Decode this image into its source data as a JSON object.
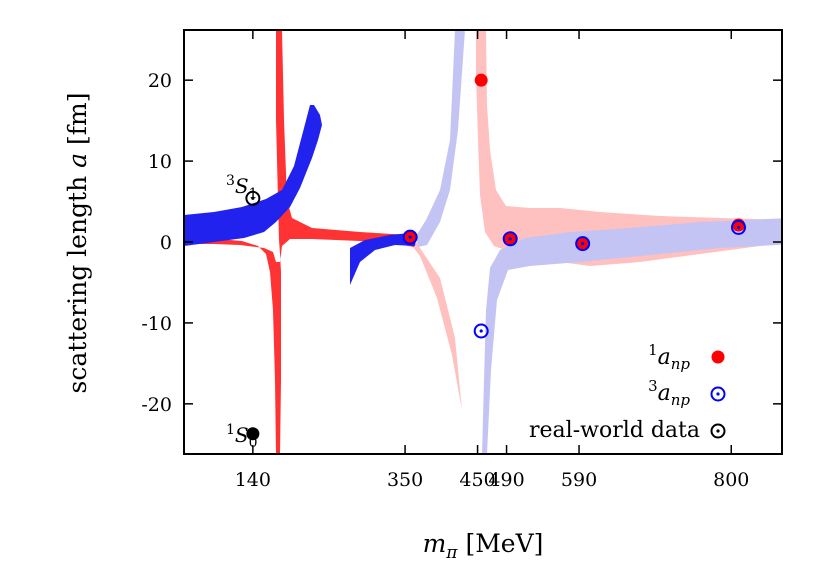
{
  "chart_data": {
    "type": "scatter",
    "xlabel": {
      "symbol": "m",
      "sub": "π",
      "unit": "[MeV]"
    },
    "ylabel": {
      "text": "scattering length ",
      "symbol": "a",
      "unit": " [fm]"
    },
    "xlim": [
      45,
      870
    ],
    "ylim": [
      -26.2,
      26.2
    ],
    "x_ticks": [
      140,
      350,
      450,
      490,
      590,
      800
    ],
    "y_ticks": [
      -20,
      -10,
      0,
      10,
      20
    ],
    "grid": false,
    "legend_position": "bottom-right",
    "colors": {
      "red": "#ff0000",
      "blue": "#0000ff",
      "black": "#000000",
      "red_band_dark": "#ff3333",
      "blue_band_dark": "#2222ee",
      "red_band_light": "#ffc0c0",
      "blue_band_light": "#c4c4f4"
    },
    "legend": [
      {
        "base": "a",
        "sup": "1",
        "sub": "np",
        "marker": "filled-red"
      },
      {
        "base": "a",
        "sup": "3",
        "sub": "np",
        "marker": "open-blue"
      },
      {
        "text": "real-world data",
        "marker": "open-black"
      }
    ],
    "annotations": [
      {
        "sup": "3",
        "base": "S",
        "sub": "1"
      },
      {
        "sup": "1",
        "base": "S",
        "sub": "0"
      }
    ],
    "series": [
      {
        "name": "1a_np",
        "marker": "filled-red",
        "points": [
          {
            "x": 357,
            "y": 0.6
          },
          {
            "x": 455,
            "y": 20.0
          },
          {
            "x": 495,
            "y": 0.4
          },
          {
            "x": 595,
            "y": -0.2
          },
          {
            "x": 810,
            "y": 2.1
          }
        ]
      },
      {
        "name": "3a_np",
        "marker": "open-blue",
        "points": [
          {
            "x": 357,
            "y": 0.6
          },
          {
            "x": 455,
            "y": -11.0
          },
          {
            "x": 495,
            "y": 0.4
          },
          {
            "x": 595,
            "y": -0.2
          },
          {
            "x": 810,
            "y": 1.8
          }
        ]
      },
      {
        "name": "real-world data",
        "points": [
          {
            "x": 140,
            "y": 5.4,
            "marker": "open-black"
          },
          {
            "x": 140,
            "y": -23.7,
            "marker": "filled-black"
          }
        ]
      }
    ]
  }
}
